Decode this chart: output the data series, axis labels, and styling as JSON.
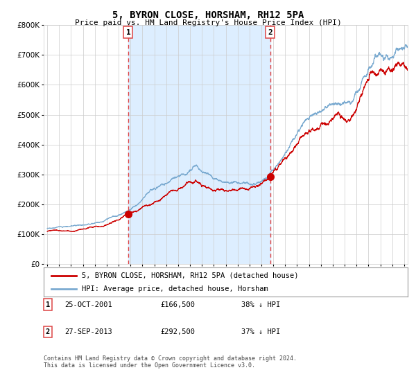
{
  "title": "5, BYRON CLOSE, HORSHAM, RH12 5PA",
  "subtitle": "Price paid vs. HM Land Registry's House Price Index (HPI)",
  "legend_line1": "5, BYRON CLOSE, HORSHAM, RH12 5PA (detached house)",
  "legend_line2": "HPI: Average price, detached house, Horsham",
  "sale1_date": "25-OCT-2001",
  "sale1_price": "£166,500",
  "sale1_hpi": "38% ↓ HPI",
  "sale1_year": 2001.81,
  "sale1_value": 166500,
  "sale2_date": "27-SEP-2013",
  "sale2_price": "£292,500",
  "sale2_hpi": "37% ↓ HPI",
  "sale2_year": 2013.74,
  "sale2_value": 292500,
  "footnote1": "Contains HM Land Registry data © Crown copyright and database right 2024.",
  "footnote2": "This data is licensed under the Open Government Licence v3.0.",
  "hpi_color": "#7aaad0",
  "price_color": "#cc0000",
  "shade_color": "#ddeeff",
  "vline_color": "#dd4444",
  "background_color": "#ffffff",
  "grid_color": "#cccccc",
  "ylim_max": 800000,
  "xlim_start": 1994.7,
  "xlim_end": 2025.3
}
